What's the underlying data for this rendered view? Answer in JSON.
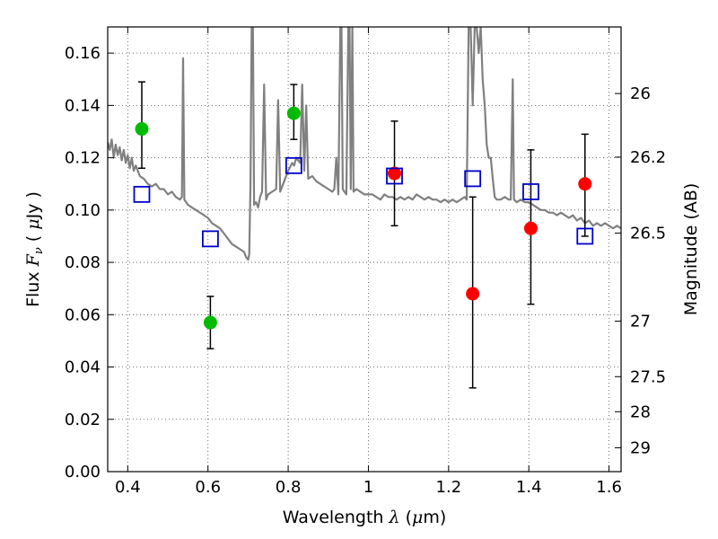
{
  "chart_data": {
    "type": "scatter",
    "xlabel": "Wavelength  λ (μm)",
    "ylabel": "Flux  Fν  ( μJy )",
    "y2label": "Magnitude (AB)",
    "xlim": [
      0.35,
      1.63
    ],
    "ylim": [
      0.0,
      0.17
    ],
    "grid": true,
    "x_ticks": [
      {
        "value": 0.4,
        "label": "0.4"
      },
      {
        "value": 0.6,
        "label": "0.6"
      },
      {
        "value": 0.8,
        "label": "0.8"
      },
      {
        "value": 1.0,
        "label": "1"
      },
      {
        "value": 1.2,
        "label": "1.2"
      },
      {
        "value": 1.4,
        "label": "1.4"
      },
      {
        "value": 1.6,
        "label": "1.6"
      }
    ],
    "y_ticks": [
      {
        "value": 0.0,
        "label": "0.00"
      },
      {
        "value": 0.02,
        "label": "0.02"
      },
      {
        "value": 0.04,
        "label": "0.04"
      },
      {
        "value": 0.06,
        "label": "0.06"
      },
      {
        "value": 0.08,
        "label": "0.08"
      },
      {
        "value": 0.1,
        "label": "0.10"
      },
      {
        "value": 0.12,
        "label": "0.12"
      },
      {
        "value": 0.14,
        "label": "0.14"
      },
      {
        "value": 0.16,
        "label": "0.16"
      }
    ],
    "y2_ticks": [
      {
        "mag": 26,
        "label": "26"
      },
      {
        "mag": 26.2,
        "label": "26.2"
      },
      {
        "mag": 26.5,
        "label": "26.5"
      },
      {
        "mag": 27,
        "label": "27"
      },
      {
        "mag": 27.5,
        "label": "27.5"
      },
      {
        "mag": 28,
        "label": "28"
      },
      {
        "mag": 29,
        "label": "29"
      }
    ],
    "colors": {
      "green": "#00bb00",
      "red": "#ff0000",
      "model_squares": "#0000cc",
      "template": "#808080",
      "errorbar": "#000000"
    },
    "series": [
      {
        "marker": "circle",
        "color": "#00bb00",
        "points": [
          {
            "x": 0.435,
            "y": 0.131,
            "ylow": 0.116,
            "yhigh": 0.149
          },
          {
            "x": 0.606,
            "y": 0.057,
            "ylow": 0.047,
            "yhigh": 0.067
          },
          {
            "x": 0.814,
            "y": 0.137,
            "ylow": 0.127,
            "yhigh": 0.148
          }
        ]
      },
      {
        "marker": "circle",
        "color": "#ff0000",
        "points": [
          {
            "x": 1.065,
            "y": 0.114,
            "ylow": 0.094,
            "yhigh": 0.134
          },
          {
            "x": 1.26,
            "y": 0.068,
            "ylow": 0.032,
            "yhigh": 0.105
          },
          {
            "x": 1.405,
            "y": 0.093,
            "ylow": 0.064,
            "yhigh": 0.123
          },
          {
            "x": 1.54,
            "y": 0.11,
            "ylow": 0.09,
            "yhigh": 0.129
          }
        ]
      },
      {
        "marker": "open-square",
        "color": "#0000cc",
        "points": [
          {
            "x": 0.435,
            "y": 0.106
          },
          {
            "x": 0.606,
            "y": 0.089
          },
          {
            "x": 0.814,
            "y": 0.117
          },
          {
            "x": 1.065,
            "y": 0.113
          },
          {
            "x": 1.26,
            "y": 0.112
          },
          {
            "x": 1.405,
            "y": 0.107
          },
          {
            "x": 1.54,
            "y": 0.09
          }
        ]
      },
      {
        "marker": "line",
        "color": "#808080",
        "points": [
          [
            0.35,
            0.126
          ],
          [
            0.355,
            0.123
          ],
          [
            0.36,
            0.127
          ],
          [
            0.365,
            0.12
          ],
          [
            0.37,
            0.125
          ],
          [
            0.375,
            0.121
          ],
          [
            0.38,
            0.124
          ],
          [
            0.385,
            0.119
          ],
          [
            0.39,
            0.123
          ],
          [
            0.395,
            0.118
          ],
          [
            0.4,
            0.121
          ],
          [
            0.405,
            0.116
          ],
          [
            0.41,
            0.12
          ],
          [
            0.415,
            0.115
          ],
          [
            0.42,
            0.117
          ],
          [
            0.43,
            0.113
          ],
          [
            0.44,
            0.112
          ],
          [
            0.45,
            0.11
          ],
          [
            0.46,
            0.109
          ],
          [
            0.47,
            0.11
          ],
          [
            0.48,
            0.108
          ],
          [
            0.49,
            0.108
          ],
          [
            0.5,
            0.106
          ],
          [
            0.51,
            0.107
          ],
          [
            0.52,
            0.105
          ],
          [
            0.53,
            0.104
          ],
          [
            0.535,
            0.105
          ],
          [
            0.538,
            0.158
          ],
          [
            0.541,
            0.104
          ],
          [
            0.55,
            0.102
          ],
          [
            0.56,
            0.101
          ],
          [
            0.57,
            0.1
          ],
          [
            0.58,
            0.099
          ],
          [
            0.59,
            0.098
          ],
          [
            0.6,
            0.097
          ],
          [
            0.61,
            0.095
          ],
          [
            0.62,
            0.094
          ],
          [
            0.63,
            0.093
          ],
          [
            0.64,
            0.091
          ],
          [
            0.65,
            0.089
          ],
          [
            0.66,
            0.087
          ],
          [
            0.67,
            0.086
          ],
          [
            0.68,
            0.085
          ],
          [
            0.69,
            0.084
          ],
          [
            0.695,
            0.082
          ],
          [
            0.7,
            0.081
          ],
          [
            0.703,
            0.083
          ],
          [
            0.706,
            0.11
          ],
          [
            0.709,
            0.17
          ],
          [
            0.712,
            0.17
          ],
          [
            0.715,
            0.102
          ],
          [
            0.72,
            0.103
          ],
          [
            0.725,
            0.101
          ],
          [
            0.73,
            0.105
          ],
          [
            0.735,
            0.107
          ],
          [
            0.74,
            0.148
          ],
          [
            0.745,
            0.104
          ],
          [
            0.75,
            0.106
          ],
          [
            0.76,
            0.107
          ],
          [
            0.77,
            0.108
          ],
          [
            0.775,
            0.142
          ],
          [
            0.78,
            0.107
          ],
          [
            0.79,
            0.111
          ],
          [
            0.8,
            0.115
          ],
          [
            0.81,
            0.118
          ],
          [
            0.815,
            0.117
          ],
          [
            0.82,
            0.12
          ],
          [
            0.83,
            0.118
          ],
          [
            0.835,
            0.148
          ],
          [
            0.84,
            0.115
          ],
          [
            0.845,
            0.14
          ],
          [
            0.85,
            0.112
          ],
          [
            0.86,
            0.113
          ],
          [
            0.87,
            0.111
          ],
          [
            0.88,
            0.11
          ],
          [
            0.89,
            0.109
          ],
          [
            0.9,
            0.108
          ],
          [
            0.91,
            0.107
          ],
          [
            0.915,
            0.108
          ],
          [
            0.92,
            0.12
          ],
          [
            0.925,
            0.106
          ],
          [
            0.93,
            0.17
          ],
          [
            0.933,
            0.17
          ],
          [
            0.936,
            0.108
          ],
          [
            0.94,
            0.107
          ],
          [
            0.945,
            0.106
          ],
          [
            0.95,
            0.17
          ],
          [
            0.953,
            0.17
          ],
          [
            0.956,
            0.108
          ],
          [
            0.96,
            0.17
          ],
          [
            0.963,
            0.107
          ],
          [
            0.97,
            0.108
          ],
          [
            0.98,
            0.107
          ],
          [
            0.99,
            0.106
          ],
          [
            1.0,
            0.106
          ],
          [
            1.01,
            0.106
          ],
          [
            1.02,
            0.105
          ],
          [
            1.03,
            0.104
          ],
          [
            1.04,
            0.106
          ],
          [
            1.05,
            0.105
          ],
          [
            1.06,
            0.105
          ],
          [
            1.07,
            0.104
          ],
          [
            1.08,
            0.105
          ],
          [
            1.09,
            0.104
          ],
          [
            1.1,
            0.105
          ],
          [
            1.11,
            0.104
          ],
          [
            1.12,
            0.106
          ],
          [
            1.13,
            0.105
          ],
          [
            1.14,
            0.104
          ],
          [
            1.15,
            0.105
          ],
          [
            1.16,
            0.104
          ],
          [
            1.17,
            0.104
          ],
          [
            1.18,
            0.103
          ],
          [
            1.19,
            0.104
          ],
          [
            1.2,
            0.103
          ],
          [
            1.21,
            0.104
          ],
          [
            1.22,
            0.103
          ],
          [
            1.23,
            0.104
          ],
          [
            1.24,
            0.105
          ],
          [
            1.245,
            0.104
          ],
          [
            1.25,
            0.17
          ],
          [
            1.255,
            0.17
          ],
          [
            1.26,
            0.14
          ],
          [
            1.265,
            0.17
          ],
          [
            1.27,
            0.17
          ],
          [
            1.275,
            0.16
          ],
          [
            1.28,
            0.17
          ],
          [
            1.285,
            0.15
          ],
          [
            1.29,
            0.14
          ],
          [
            1.295,
            0.125
          ],
          [
            1.3,
            0.12
          ],
          [
            1.305,
            0.12
          ],
          [
            1.31,
            0.112
          ],
          [
            1.315,
            0.105
          ],
          [
            1.32,
            0.104
          ],
          [
            1.33,
            0.104
          ],
          [
            1.34,
            0.105
          ],
          [
            1.35,
            0.104
          ],
          [
            1.355,
            0.104
          ],
          [
            1.36,
            0.15
          ],
          [
            1.363,
            0.104
          ],
          [
            1.37,
            0.103
          ],
          [
            1.38,
            0.104
          ],
          [
            1.39,
            0.103
          ],
          [
            1.4,
            0.103
          ],
          [
            1.41,
            0.102
          ],
          [
            1.42,
            0.101
          ],
          [
            1.43,
            0.1
          ],
          [
            1.44,
            0.1
          ],
          [
            1.45,
            0.099
          ],
          [
            1.46,
            0.099
          ],
          [
            1.47,
            0.098
          ],
          [
            1.48,
            0.099
          ],
          [
            1.49,
            0.098
          ],
          [
            1.5,
            0.097
          ],
          [
            1.51,
            0.098
          ],
          [
            1.52,
            0.096
          ],
          [
            1.53,
            0.097
          ],
          [
            1.54,
            0.095
          ],
          [
            1.55,
            0.096
          ],
          [
            1.56,
            0.094
          ],
          [
            1.57,
            0.095
          ],
          [
            1.58,
            0.094
          ],
          [
            1.59,
            0.095
          ],
          [
            1.6,
            0.094
          ],
          [
            1.61,
            0.093
          ],
          [
            1.62,
            0.094
          ],
          [
            1.63,
            0.093
          ]
        ]
      }
    ]
  }
}
